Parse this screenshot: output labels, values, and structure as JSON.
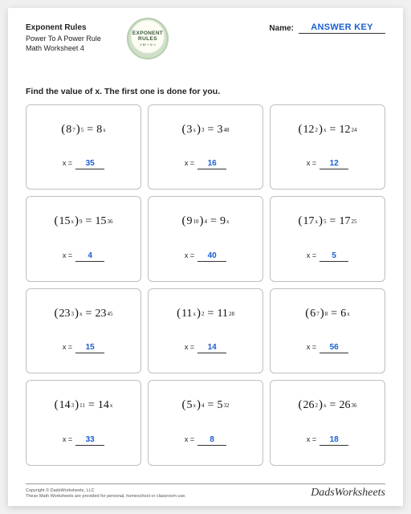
{
  "header": {
    "title": "Exponent Rules",
    "subtitle1": "Power To A Power Rule",
    "subtitle2": "Math Worksheet 4",
    "name_label": "Name:",
    "answer_key": "ANSWER KEY"
  },
  "badge": {
    "line1": "EXPONENT",
    "line2": "RULES",
    "line3": "V B³ ÷ 3ⁿ ×"
  },
  "instruction": "Find the value of x.  The first one is done for you.",
  "answer_prefix": "x  =",
  "colors": {
    "answer": "#1a5fd0",
    "border": "#bfbfbf",
    "text": "#222222",
    "background": "#ffffff"
  },
  "problems": [
    {
      "base": "8",
      "inner": "7",
      "outer": "5",
      "rhs_base": "8",
      "rhs_exp": "x",
      "answer": "35"
    },
    {
      "base": "3",
      "inner": "x",
      "outer": "3",
      "rhs_base": "3",
      "rhs_exp": "48",
      "answer": "16"
    },
    {
      "base": "12",
      "inner": "2",
      "outer": "x",
      "rhs_base": "12",
      "rhs_exp": "24",
      "answer": "12"
    },
    {
      "base": "15",
      "inner": "x",
      "outer": "9",
      "rhs_base": "15",
      "rhs_exp": "36",
      "answer": "4"
    },
    {
      "base": "9",
      "inner": "10",
      "outer": "4",
      "rhs_base": "9",
      "rhs_exp": "x",
      "answer": "40"
    },
    {
      "base": "17",
      "inner": "x",
      "outer": "5",
      "rhs_base": "17",
      "rhs_exp": "25",
      "answer": "5"
    },
    {
      "base": "23",
      "inner": "3",
      "outer": "x",
      "rhs_base": "23",
      "rhs_exp": "45",
      "answer": "15"
    },
    {
      "base": "11",
      "inner": "x",
      "outer": "2",
      "rhs_base": "11",
      "rhs_exp": "28",
      "answer": "14"
    },
    {
      "base": "6",
      "inner": "7",
      "outer": "8",
      "rhs_base": "6",
      "rhs_exp": "x",
      "answer": "56"
    },
    {
      "base": "14",
      "inner": "3",
      "outer": "11",
      "rhs_base": "14",
      "rhs_exp": "x",
      "answer": "33"
    },
    {
      "base": "5",
      "inner": "x",
      "outer": "4",
      "rhs_base": "5",
      "rhs_exp": "32",
      "answer": "8"
    },
    {
      "base": "26",
      "inner": "2",
      "outer": "x",
      "rhs_base": "26",
      "rhs_exp": "36",
      "answer": "18"
    }
  ],
  "footer": {
    "copyright": "Copyright © DadsWorksheets, LLC",
    "note": "These Math Worksheets are provided for personal, homeschool or classroom use.",
    "brand": "DadsWorksheets"
  }
}
